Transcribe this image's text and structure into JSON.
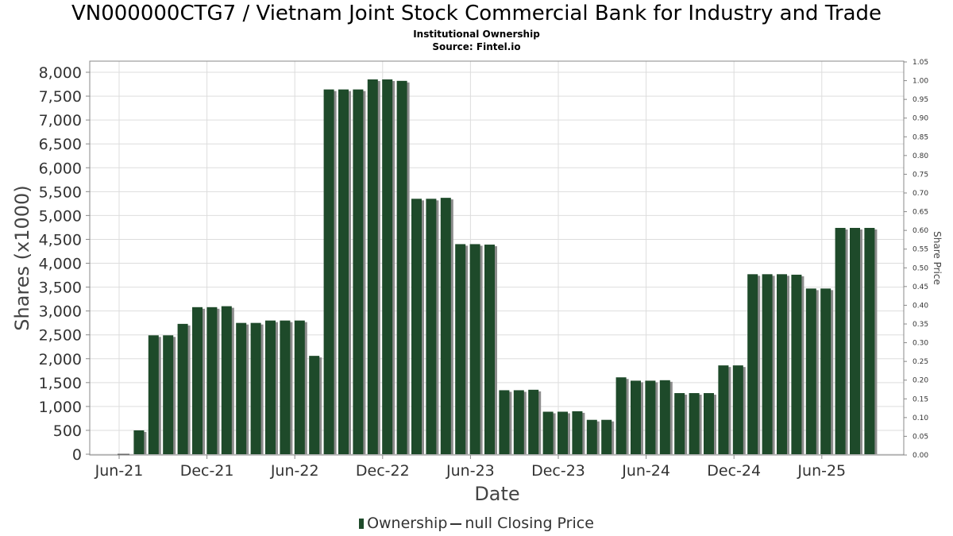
{
  "header": {
    "title": "VN000000CTG7 / Vietnam Joint Stock Commercial Bank for Industry and Trade",
    "subtitle": "Institutional Ownership",
    "source": "Source: Fintel.io"
  },
  "legend": {
    "ownership_label": "Ownership",
    "price_label": "null Closing Price"
  },
  "colors": {
    "bar": "#1e4a2a",
    "bar_shadow": "#8c8c8c",
    "grid": "#dddddd",
    "axis": "#888888"
  },
  "chart_data": {
    "type": "bar",
    "title": "VN000000CTG7 / Vietnam Joint Stock Commercial Bank for Industry and Trade",
    "subtitle": "Institutional Ownership",
    "xlabel": "Date",
    "ylabel": "Shares (x1000)",
    "y2label": "Share Price",
    "ylim": [
      0,
      8200
    ],
    "y2lim": [
      0,
      1.05
    ],
    "yticks": [
      "0",
      "500",
      "1,000",
      "1,500",
      "2,000",
      "2,500",
      "3,000",
      "3,500",
      "4,000",
      "4,500",
      "5,000",
      "5,500",
      "6,000",
      "6,500",
      "7,000",
      "7,500",
      "8,000"
    ],
    "y2ticks": [
      "0.00",
      "0.05",
      "0.10",
      "0.15",
      "0.20",
      "0.25",
      "0.30",
      "0.35",
      "0.40",
      "0.45",
      "0.50",
      "0.55",
      "0.60",
      "0.65",
      "0.70",
      "0.75",
      "0.80",
      "0.85",
      "0.90",
      "0.95",
      "1.00",
      "1.05"
    ],
    "xticks": [
      "Jun-21",
      "Dec-21",
      "Jun-22",
      "Dec-22",
      "Jun-23",
      "Dec-23",
      "Jun-24",
      "Dec-24",
      "Jun-25"
    ],
    "grid": true,
    "legend_position": "bottom",
    "series": [
      {
        "name": "Ownership",
        "values": [
          0,
          500,
          2490,
          2490,
          2730,
          3080,
          3080,
          3100,
          2750,
          2750,
          2800,
          2800,
          2800,
          2060,
          7640,
          7640,
          7640,
          7850,
          7850,
          7820,
          5350,
          5350,
          5370,
          4400,
          4400,
          4390,
          1340,
          1340,
          1350,
          890,
          890,
          900,
          720,
          720,
          1610,
          1540,
          1540,
          1550,
          1280,
          1280,
          1280,
          1860,
          1860,
          3770,
          3770,
          3770,
          3760,
          3470,
          3470,
          4740,
          4740,
          4740
        ]
      }
    ]
  }
}
